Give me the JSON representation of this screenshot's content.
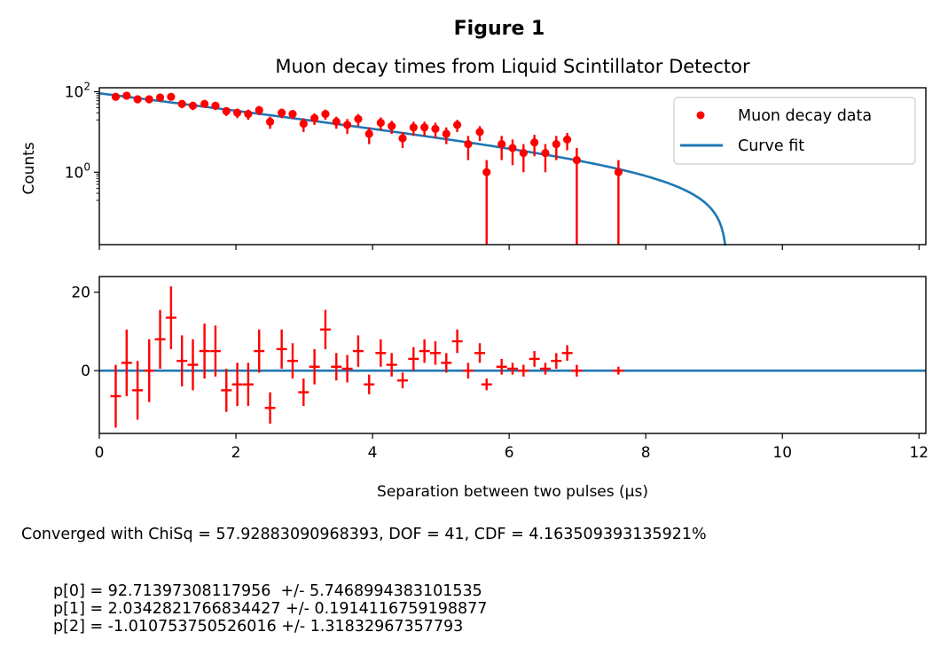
{
  "figure_title": "Figure 1",
  "chart_data": [
    {
      "type": "scatter",
      "title": "Muon decay times from Liquid Scintillator Detector",
      "xlabel": "",
      "ylabel": "Counts",
      "yscale": "log",
      "ytick_labels": [
        "10^0",
        "10^2"
      ],
      "xlim": [
        0,
        12.1
      ],
      "ylim_log10": [
        -1.8,
        2.1
      ],
      "grid": false,
      "legend": {
        "placement": "top-right",
        "entries": [
          "Muon decay data",
          "Curve fit"
        ]
      },
      "series": [
        {
          "name": "Muon decay data",
          "style": "points-with-errorbars",
          "color": "#ff0000",
          "x": [
            0.24,
            0.4,
            0.56,
            0.73,
            0.89,
            1.05,
            1.21,
            1.37,
            1.54,
            1.7,
            1.86,
            2.02,
            2.18,
            2.34,
            2.5,
            2.67,
            2.83,
            2.99,
            3.15,
            3.31,
            3.47,
            3.63,
            3.79,
            3.95,
            4.12,
            4.28,
            4.44,
            4.6,
            4.76,
            4.92,
            5.08,
            5.24,
            5.4,
            5.57,
            5.67,
            5.89,
            6.05,
            6.21,
            6.37,
            6.53,
            6.69,
            6.85,
            6.99,
            7.6
          ],
          "y": [
            75,
            80,
            65,
            65,
            72,
            75,
            50,
            45,
            50,
            45,
            33,
            30,
            28,
            35,
            18,
            30,
            28,
            16,
            22,
            28,
            18,
            15,
            21,
            9,
            17,
            14,
            7,
            13,
            13,
            12,
            9,
            15,
            5,
            10,
            1,
            5,
            4,
            3,
            5.5,
            3,
            5,
            6.5,
            2,
            1
          ],
          "yerr": [
            15,
            15,
            12,
            12,
            13,
            14,
            11,
            10,
            10,
            10,
            8,
            8,
            8,
            9,
            6,
            8,
            7,
            6,
            7,
            8,
            6,
            6,
            7,
            4,
            6,
            5,
            3,
            5,
            5,
            5,
            4,
            5,
            3,
            4,
            1,
            3,
            2.5,
            2,
            3,
            2,
            3,
            3,
            2,
            1
          ]
        },
        {
          "name": "Curve fit",
          "style": "line",
          "color": "#1f77b4",
          "function": "p0*exp(-x/p1)+p2"
        }
      ]
    },
    {
      "type": "scatter",
      "title": "",
      "xlabel": "Separation between two pulses (μs)",
      "ylabel": "",
      "xlim": [
        0,
        12.1
      ],
      "ylim": [
        -16,
        24
      ],
      "xticks": [
        0,
        2,
        4,
        6,
        8,
        10,
        12
      ],
      "yticks": [
        0,
        20
      ],
      "grid": false,
      "series": [
        {
          "name": "",
          "style": "residual-crosses",
          "color": "#ff0000",
          "x": [
            0.24,
            0.4,
            0.56,
            0.73,
            0.89,
            1.05,
            1.21,
            1.37,
            1.54,
            1.7,
            1.86,
            2.02,
            2.18,
            2.34,
            2.5,
            2.67,
            2.83,
            2.99,
            3.15,
            3.31,
            3.47,
            3.63,
            3.79,
            3.95,
            4.12,
            4.28,
            4.44,
            4.6,
            4.76,
            4.92,
            5.08,
            5.24,
            5.4,
            5.57,
            5.67,
            5.89,
            6.05,
            6.21,
            6.37,
            6.53,
            6.69,
            6.85,
            6.99,
            7.6
          ],
          "y": [
            -6.5,
            2,
            -5,
            0,
            8,
            13.5,
            2.5,
            1.5,
            5,
            5,
            -5,
            -3.5,
            -3.5,
            5,
            -9.5,
            5.5,
            2.5,
            -5.5,
            1,
            10.5,
            1,
            0.5,
            5,
            -3.5,
            4.5,
            1.5,
            -2.5,
            3,
            5,
            4.5,
            2,
            7.5,
            0,
            4.5,
            -3.5,
            1,
            0.5,
            0,
            3,
            0.5,
            2.5,
            4.5,
            0,
            0
          ],
          "yerr": [
            8,
            8.5,
            7.5,
            8,
            7.5,
            8,
            6.5,
            6.5,
            7,
            6.5,
            5.5,
            5.5,
            5.5,
            5.5,
            4,
            5,
            4.5,
            3.5,
            4.5,
            5,
            3.5,
            3.5,
            4,
            2.5,
            3.5,
            3,
            2,
            3,
            3,
            3,
            2.5,
            3,
            2,
            2.5,
            1.5,
            2,
            1.5,
            1.5,
            2,
            1.5,
            2,
            2,
            1.5,
            1
          ]
        },
        {
          "name": "",
          "style": "line",
          "color": "#1f77b4",
          "y": 0
        }
      ]
    }
  ],
  "fit_params": [
    92.71397308117956,
    2.0342821766834427,
    -1.010753750526016
  ],
  "stats_text": "Converged with ChiSq = 57.92883090968393, DOF = 41, CDF = 4.163509393135921%",
  "param_lines": [
    "p[0] = 92.71397308117956  +/- 5.7468994383101535",
    "p[1] = 2.0342821766834427 +/- 0.1914116759198877",
    "p[2] = -1.010753750526016 +/- 1.31832967357793"
  ]
}
